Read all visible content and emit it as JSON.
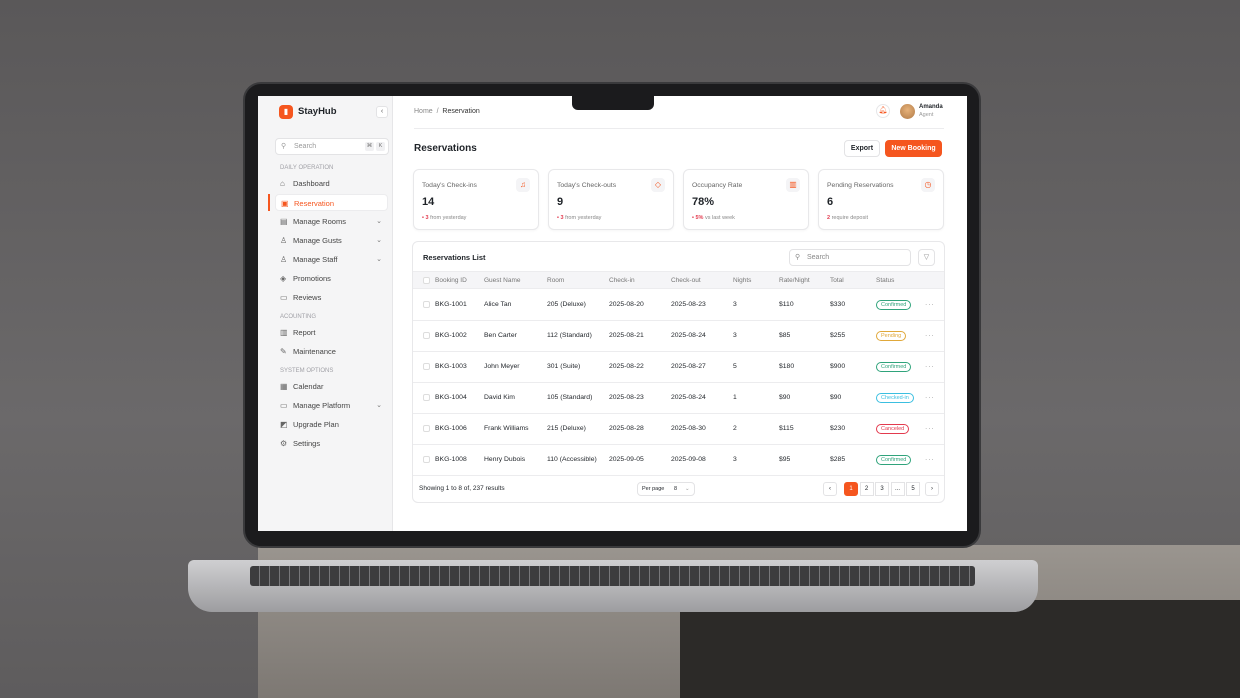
{
  "app": {
    "brand": "StayHub",
    "accent": "#f5561f"
  },
  "sidebar": {
    "search_placeholder": "Search",
    "shortcut_keys": [
      "⌘",
      "K"
    ],
    "sections": [
      {
        "label": "DAILY OPERATION",
        "items": [
          {
            "label": "Dashboard",
            "icon": "home-icon"
          },
          {
            "label": "Reservation",
            "icon": "calendar-check-icon",
            "active": true
          },
          {
            "label": "Manage Rooms",
            "icon": "bed-icon",
            "expandable": true
          },
          {
            "label": "Manage Gusts",
            "icon": "user-icon",
            "expandable": true
          },
          {
            "label": "Manage Staff",
            "icon": "users-icon",
            "expandable": true
          },
          {
            "label": "Promotions",
            "icon": "megaphone-icon"
          },
          {
            "label": "Reviews",
            "icon": "message-icon"
          }
        ]
      },
      {
        "label": "ACOUNTING",
        "items": [
          {
            "label": "Report",
            "icon": "chart-icon"
          },
          {
            "label": "Maintenance",
            "icon": "wrench-icon"
          }
        ]
      },
      {
        "label": "SYSTEM OPTIONS",
        "items": [
          {
            "label": "Calendar",
            "icon": "calendar-icon"
          },
          {
            "label": "Manage Platform",
            "icon": "monitor-icon",
            "expandable": true
          },
          {
            "label": "Upgrade Plan",
            "icon": "upgrade-icon"
          },
          {
            "label": "Settings",
            "icon": "gear-icon"
          }
        ]
      }
    ]
  },
  "header": {
    "breadcrumb": [
      "Home",
      "Reservation"
    ],
    "user": {
      "name": "Amanda",
      "role": "Agent"
    }
  },
  "page": {
    "title": "Reservations",
    "export_label": "Export",
    "new_booking_label": "New Booking"
  },
  "stats": [
    {
      "label": "Today's Check-ins",
      "value": "14",
      "delta": "3",
      "note": "from yesterday",
      "icon": "bell-icon"
    },
    {
      "label": "Today's Check-outs",
      "value": "9",
      "delta": "3",
      "note": "from yesterday",
      "icon": "tag-icon"
    },
    {
      "label": "Occupancy Rate",
      "value": "78%",
      "delta": "5%",
      "note": "vs last week",
      "icon": "bar-chart-icon"
    },
    {
      "label": "Pending Reservations",
      "value": "6",
      "delta": "2",
      "note": "require deposit",
      "icon": "clock-icon"
    }
  ],
  "table": {
    "title": "Reservations List",
    "search_placeholder": "Search",
    "columns": [
      "Booking ID",
      "Guest Name",
      "Room",
      "Check-in",
      "Check-out",
      "Nights",
      "Rate/Night",
      "Total",
      "Status"
    ],
    "rows": [
      [
        "BKG-1001",
        "Alice Tan",
        "205 (Deluxe)",
        "2025-08-20",
        "2025-08-23",
        "3",
        "$110",
        "$330",
        "Confirmed"
      ],
      [
        "BKG-1002",
        "Ben Carter",
        "112 (Standard)",
        "2025-08-21",
        "2025-08-24",
        "3",
        "$85",
        "$255",
        "Pending"
      ],
      [
        "BKG-1003",
        "John Meyer",
        "301 (Suite)",
        "2025-08-22",
        "2025-08-27",
        "5",
        "$180",
        "$900",
        "Confirmed"
      ],
      [
        "BKG-1004",
        "David Kim",
        "105 (Standard)",
        "2025-08-23",
        "2025-08-24",
        "1",
        "$90",
        "$90",
        "Checked-in"
      ],
      [
        "BKG-1006",
        "Frank Williams",
        "215 (Deluxe)",
        "2025-08-28",
        "2025-08-30",
        "2",
        "$115",
        "$230",
        "Canceled"
      ],
      [
        "BKG-1008",
        "Henry Dubois",
        "110 (Accessible)",
        "2025-09-05",
        "2025-09-08",
        "3",
        "$95",
        "$285",
        "Confirmed"
      ]
    ],
    "status_colors": {
      "Confirmed": "#2fa37b",
      "Pending": "#e0a83a",
      "Checked-in": "#3bbfe0",
      "Canceled": "#e33a4e"
    },
    "footer": {
      "summary": "Showing 1 to 8 of, 237 results",
      "per_page_label": "Per page",
      "per_page": "8",
      "pages": [
        "1",
        "2",
        "3",
        "...",
        "5"
      ],
      "current_page": "1"
    }
  }
}
